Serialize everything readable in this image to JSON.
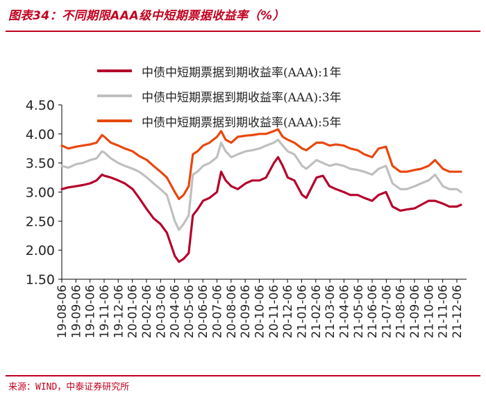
{
  "header": {
    "title": "图表34：不同期限AAA级中短期票据收益率（%）"
  },
  "footer": {
    "source": "来源：WIND，中泰证券研究所"
  },
  "chart_data": {
    "type": "line",
    "title": "图表34：不同期限AAA级中短期票据收益率（%）",
    "xlabel": "",
    "ylabel": "",
    "ylim": [
      1.5,
      4.5
    ],
    "yticks": [
      "4.50",
      "4.00",
      "3.50",
      "3.00",
      "2.50",
      "2.00",
      "1.50"
    ],
    "grid": false,
    "legend_position": "top-center",
    "x_tick_labels": [
      "19-08-06",
      "19-09-06",
      "19-10-06",
      "19-11-06",
      "19-12-06",
      "20-01-06",
      "20-02-06",
      "20-03-06",
      "20-04-06",
      "20-05-06",
      "20-06-06",
      "20-07-06",
      "20-08-06",
      "20-09-06",
      "20-10-06",
      "20-11-06",
      "20-12-06",
      "21-01-06",
      "21-02-06",
      "21-03-06",
      "21-04-06",
      "21-05-06",
      "21-06-06",
      "21-07-06",
      "21-08-06",
      "21-09-06",
      "21-10-06",
      "21-11-06",
      "21-12-06"
    ],
    "x": [
      "2019-08-06",
      "2019-08-20",
      "2019-09-06",
      "2019-09-20",
      "2019-10-06",
      "2019-10-20",
      "2019-11-01",
      "2019-11-06",
      "2019-11-20",
      "2019-12-06",
      "2019-12-20",
      "2020-01-06",
      "2020-01-20",
      "2020-02-06",
      "2020-02-20",
      "2020-03-06",
      "2020-03-20",
      "2020-04-06",
      "2020-04-15",
      "2020-04-25",
      "2020-05-06",
      "2020-05-15",
      "2020-05-25",
      "2020-06-06",
      "2020-06-20",
      "2020-07-06",
      "2020-07-15",
      "2020-07-25",
      "2020-08-06",
      "2020-08-20",
      "2020-09-06",
      "2020-09-20",
      "2020-10-06",
      "2020-10-20",
      "2020-11-06",
      "2020-11-15",
      "2020-11-25",
      "2020-12-06",
      "2020-12-20",
      "2021-01-06",
      "2021-01-15",
      "2021-02-06",
      "2021-02-20",
      "2021-03-06",
      "2021-03-20",
      "2021-04-06",
      "2021-04-20",
      "2021-05-06",
      "2021-05-20",
      "2021-06-06",
      "2021-06-20",
      "2021-07-06",
      "2021-07-20",
      "2021-08-06",
      "2021-08-20",
      "2021-09-06",
      "2021-09-20",
      "2021-10-06",
      "2021-10-20",
      "2021-11-06",
      "2021-11-20",
      "2021-12-06",
      "2021-12-15"
    ],
    "series": [
      {
        "name": "中债中短期票据到期收益率(AAA):1年",
        "color": "#b5002a",
        "values": [
          3.05,
          3.08,
          3.1,
          3.12,
          3.15,
          3.2,
          3.3,
          3.28,
          3.25,
          3.2,
          3.15,
          3.05,
          2.9,
          2.7,
          2.55,
          2.45,
          2.3,
          1.9,
          1.8,
          1.85,
          1.95,
          2.6,
          2.7,
          2.85,
          2.9,
          3.0,
          3.35,
          3.2,
          3.1,
          3.05,
          3.15,
          3.2,
          3.2,
          3.25,
          3.5,
          3.6,
          3.45,
          3.25,
          3.2,
          2.95,
          2.9,
          3.25,
          3.28,
          3.1,
          3.05,
          3.0,
          2.95,
          2.95,
          2.9,
          2.85,
          2.95,
          3.0,
          2.75,
          2.68,
          2.7,
          2.72,
          2.78,
          2.85,
          2.85,
          2.8,
          2.75,
          2.75,
          2.78
        ]
      },
      {
        "name": "中债中短期票据到期收益率(AAA):3年",
        "color": "#bfbfbf",
        "values": [
          3.45,
          3.42,
          3.48,
          3.5,
          3.55,
          3.58,
          3.7,
          3.68,
          3.58,
          3.5,
          3.45,
          3.4,
          3.35,
          3.25,
          3.15,
          3.05,
          2.95,
          2.5,
          2.35,
          2.45,
          2.6,
          3.3,
          3.35,
          3.45,
          3.5,
          3.6,
          3.85,
          3.7,
          3.6,
          3.65,
          3.7,
          3.72,
          3.75,
          3.8,
          3.85,
          3.9,
          3.8,
          3.7,
          3.65,
          3.45,
          3.4,
          3.55,
          3.5,
          3.45,
          3.48,
          3.45,
          3.4,
          3.38,
          3.35,
          3.3,
          3.4,
          3.45,
          3.15,
          3.05,
          3.05,
          3.1,
          3.15,
          3.2,
          3.3,
          3.1,
          3.05,
          3.05,
          3.0
        ]
      },
      {
        "name": "中债中短期票据到期收益率(AAA):5年",
        "color": "#e8470e",
        "values": [
          3.8,
          3.75,
          3.78,
          3.8,
          3.82,
          3.85,
          3.98,
          3.95,
          3.85,
          3.8,
          3.75,
          3.7,
          3.62,
          3.55,
          3.45,
          3.35,
          3.25,
          3.0,
          2.88,
          2.95,
          3.1,
          3.65,
          3.7,
          3.8,
          3.85,
          3.95,
          4.05,
          3.9,
          3.85,
          3.95,
          3.97,
          3.98,
          4.0,
          4.0,
          4.05,
          4.08,
          3.95,
          3.9,
          3.85,
          3.75,
          3.72,
          3.85,
          3.85,
          3.8,
          3.82,
          3.8,
          3.75,
          3.72,
          3.65,
          3.6,
          3.75,
          3.78,
          3.45,
          3.35,
          3.35,
          3.38,
          3.4,
          3.45,
          3.55,
          3.4,
          3.35,
          3.35,
          3.35
        ]
      }
    ]
  }
}
